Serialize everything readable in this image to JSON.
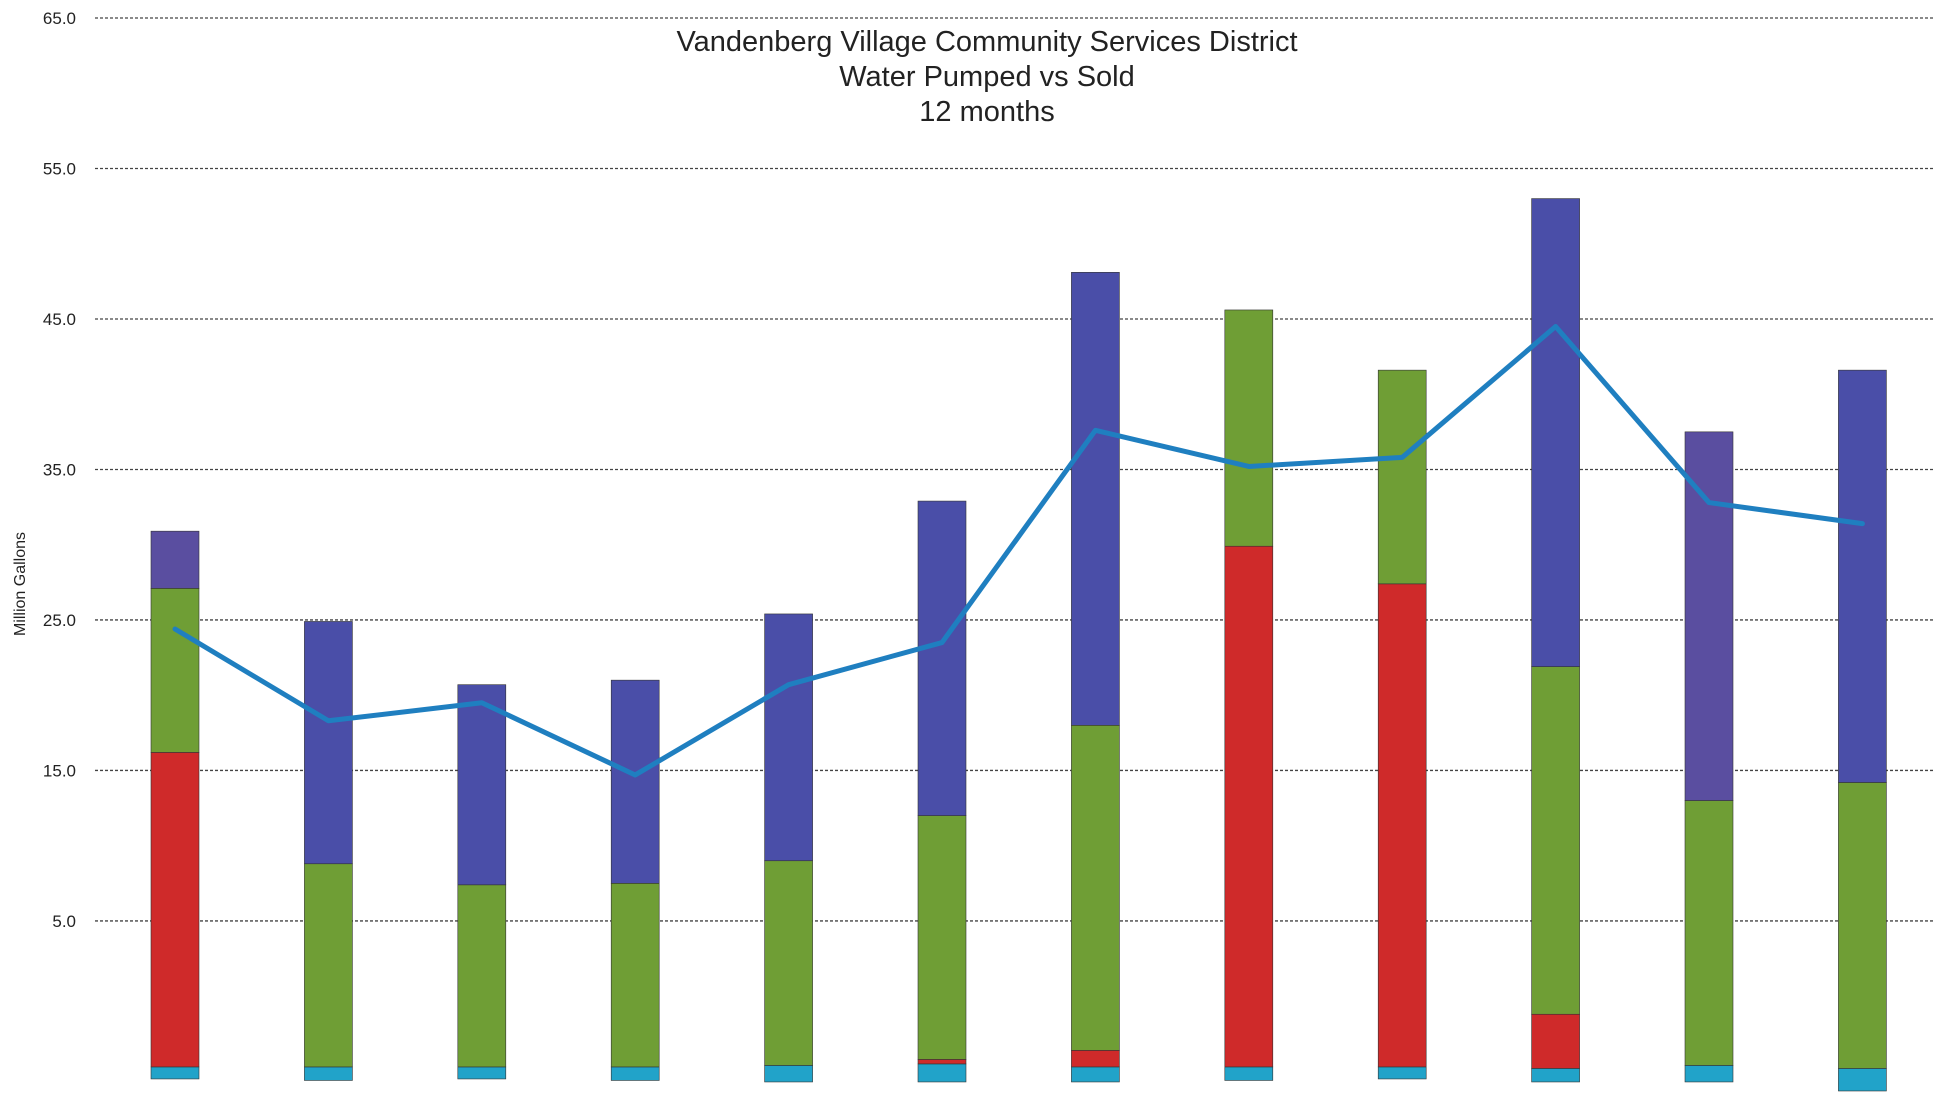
{
  "chart_data": {
    "type": "bar",
    "title": [
      "Vandenberg Village Community Services District",
      "Water Pumped vs Sold",
      "12 months"
    ],
    "ylabel": "Million Gallons",
    "xlabel": "",
    "ylim": [
      -6.5,
      65
    ],
    "yticks": [
      5,
      15,
      25,
      35,
      45,
      55,
      65
    ],
    "ytick_labels": [
      "5.0",
      "15.0",
      "25.0",
      "35.0",
      "45.0",
      "55.0",
      "65.0"
    ],
    "grid": true,
    "legend": "none",
    "bars": [
      {
        "segments": [
          {
            "color": "#21a3c9",
            "from": -5.5,
            "to": -4.7
          },
          {
            "color": "#cf2a2a",
            "from": -4.7,
            "to": 16.2
          },
          {
            "color": "#6f9e35",
            "from": 16.2,
            "to": 27.1
          },
          {
            "color": "#5a4ea0",
            "from": 27.1,
            "to": 30.9
          }
        ]
      },
      {
        "segments": [
          {
            "color": "#21a3c9",
            "from": -5.6,
            "to": -4.7
          },
          {
            "color": "#6f9e35",
            "from": -4.7,
            "to": 8.8
          },
          {
            "color": "#4a4ea8",
            "from": 8.8,
            "to": 24.9
          }
        ]
      },
      {
        "segments": [
          {
            "color": "#21a3c9",
            "from": -5.5,
            "to": -4.7
          },
          {
            "color": "#6f9e35",
            "from": -4.7,
            "to": 7.4
          },
          {
            "color": "#4a4ea8",
            "from": 7.4,
            "to": 20.7
          }
        ]
      },
      {
        "segments": [
          {
            "color": "#21a3c9",
            "from": -5.6,
            "to": -4.7
          },
          {
            "color": "#6f9e35",
            "from": -4.7,
            "to": 7.5
          },
          {
            "color": "#4a4ea8",
            "from": 7.5,
            "to": 21.0
          }
        ]
      },
      {
        "segments": [
          {
            "color": "#21a3c9",
            "from": -5.7,
            "to": -4.6
          },
          {
            "color": "#6f9e35",
            "from": -4.6,
            "to": 9.0
          },
          {
            "color": "#4a4ea8",
            "from": 9.0,
            "to": 25.4
          }
        ]
      },
      {
        "segments": [
          {
            "color": "#21a3c9",
            "from": -5.7,
            "to": -4.5
          },
          {
            "color": "#cf2a2a",
            "from": -4.5,
            "to": -4.2
          },
          {
            "color": "#6f9e35",
            "from": -4.2,
            "to": 12.0
          },
          {
            "color": "#4a4ea8",
            "from": 12.0,
            "to": 32.9
          }
        ]
      },
      {
        "segments": [
          {
            "color": "#21a3c9",
            "from": -5.7,
            "to": -4.7
          },
          {
            "color": "#cf2a2a",
            "from": -4.7,
            "to": -3.6
          },
          {
            "color": "#6f9e35",
            "from": -3.6,
            "to": 18.0
          },
          {
            "color": "#4a4ea8",
            "from": 18.0,
            "to": 48.1
          }
        ]
      },
      {
        "segments": [
          {
            "color": "#21a3c9",
            "from": -5.6,
            "to": -4.7
          },
          {
            "color": "#cf2a2a",
            "from": -4.7,
            "to": 29.9
          },
          {
            "color": "#6f9e35",
            "from": 29.9,
            "to": 45.6
          }
        ]
      },
      {
        "segments": [
          {
            "color": "#21a3c9",
            "from": -5.5,
            "to": -4.7
          },
          {
            "color": "#cf2a2a",
            "from": -4.7,
            "to": 27.4
          },
          {
            "color": "#6f9e35",
            "from": 27.4,
            "to": 41.6
          }
        ]
      },
      {
        "segments": [
          {
            "color": "#21a3c9",
            "from": -5.7,
            "to": -4.8
          },
          {
            "color": "#cf2a2a",
            "from": -4.8,
            "to": -1.2
          },
          {
            "color": "#6f9e35",
            "from": -1.2,
            "to": 21.9
          },
          {
            "color": "#4a4ea8",
            "from": 21.9,
            "to": 53.0
          }
        ]
      },
      {
        "segments": [
          {
            "color": "#21a3c9",
            "from": -5.7,
            "to": -4.6
          },
          {
            "color": "#6f9e35",
            "from": -4.6,
            "to": 13.0
          },
          {
            "color": "#5a4ea0",
            "from": 13.0,
            "to": 37.5
          }
        ]
      },
      {
        "segments": [
          {
            "color": "#21a3c9",
            "from": -6.3,
            "to": -4.8
          },
          {
            "color": "#6f9e35",
            "from": -4.8,
            "to": 14.2
          },
          {
            "color": "#4a4ea8",
            "from": 14.2,
            "to": 41.6
          }
        ]
      }
    ],
    "line": {
      "color": "#1f7fc0",
      "values": [
        24.4,
        18.3,
        19.5,
        14.7,
        20.7,
        23.5,
        37.6,
        35.2,
        35.8,
        44.5,
        32.8,
        31.4
      ]
    }
  }
}
